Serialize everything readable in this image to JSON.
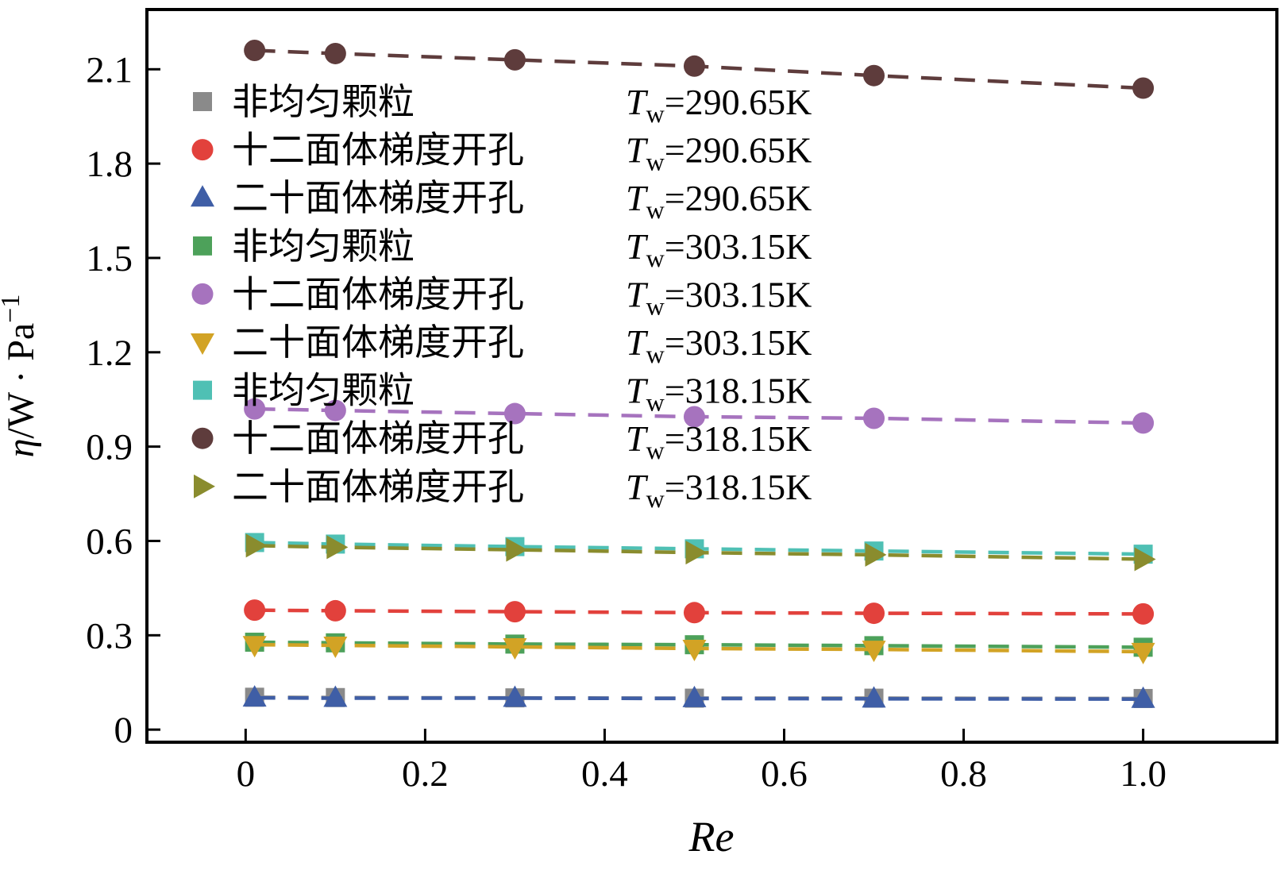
{
  "chart_data": {
    "type": "line",
    "title": "",
    "xlabel": "Re",
    "ylabel": "η/W · Pa⁻¹",
    "ylabel_parts": {
      "eta": "η",
      "mid": "/W · Pa",
      "sup": "−1"
    },
    "grid": false,
    "legend_position": "upper-left-inside",
    "xlim": [
      -0.11,
      1.149
    ],
    "ylim": [
      -0.04,
      2.29
    ],
    "x_ticks": {
      "values": [
        0,
        0.2,
        0.4,
        0.6,
        0.8,
        1.0
      ],
      "labels": [
        "0",
        "0.2",
        "0.4",
        "0.6",
        "0.8",
        "1.0"
      ]
    },
    "y_ticks": {
      "values": [
        0,
        0.3,
        0.6,
        0.9,
        1.2,
        1.5,
        1.8,
        2.1
      ],
      "labels": [
        "0",
        "0.3",
        "0.6",
        "0.9",
        "1.2",
        "1.5",
        "1.8",
        "2.1"
      ]
    },
    "x": [
      0.01,
      0.1,
      0.3,
      0.5,
      0.7,
      1.0
    ],
    "legend": {
      "t_symbol": "T",
      "t_sub": "w",
      "equals": "="
    },
    "series": [
      {
        "name": "非均匀颗粒",
        "temp": "290.65K",
        "marker": "square",
        "color": "#8a8a8a",
        "values": [
          0.103,
          0.102,
          0.101,
          0.1,
          0.1,
          0.099
        ]
      },
      {
        "name": "十二面体梯度开孔",
        "temp": "290.65K",
        "marker": "circle",
        "color": "#e2413c",
        "values": [
          0.38,
          0.378,
          0.375,
          0.372,
          0.37,
          0.368
        ]
      },
      {
        "name": "二十面体梯度开孔",
        "temp": "290.65K",
        "marker": "triangle-up",
        "color": "#3f5ea6",
        "values": [
          0.101,
          0.1,
          0.1,
          0.099,
          0.098,
          0.097
        ]
      },
      {
        "name": "非均匀颗粒",
        "temp": "303.15K",
        "marker": "square",
        "color": "#4da15a",
        "values": [
          0.278,
          0.276,
          0.272,
          0.27,
          0.267,
          0.262
        ]
      },
      {
        "name": "十二面体梯度开孔",
        "temp": "303.15K",
        "marker": "circle",
        "color": "#a673be",
        "values": [
          1.02,
          1.015,
          1.005,
          0.995,
          0.99,
          0.975
        ]
      },
      {
        "name": "二十面体梯度开孔",
        "temp": "303.15K",
        "marker": "triangle-down",
        "color": "#d2a325",
        "values": [
          0.27,
          0.268,
          0.263,
          0.258,
          0.255,
          0.248
        ]
      },
      {
        "name": "非均匀颗粒",
        "temp": "318.15K",
        "marker": "square",
        "color": "#4fc0b4",
        "values": [
          0.595,
          0.59,
          0.582,
          0.575,
          0.568,
          0.558
        ]
      },
      {
        "name": "十二面体梯度开孔",
        "temp": "318.15K",
        "marker": "circle",
        "color": "#5e3c3c",
        "values": [
          2.16,
          2.15,
          2.13,
          2.11,
          2.08,
          2.04
        ]
      },
      {
        "name": "二十面体梯度开孔",
        "temp": "318.15K",
        "marker": "triangle-right",
        "color": "#8a8c2e",
        "values": [
          0.585,
          0.58,
          0.572,
          0.563,
          0.556,
          0.542
        ]
      }
    ]
  }
}
